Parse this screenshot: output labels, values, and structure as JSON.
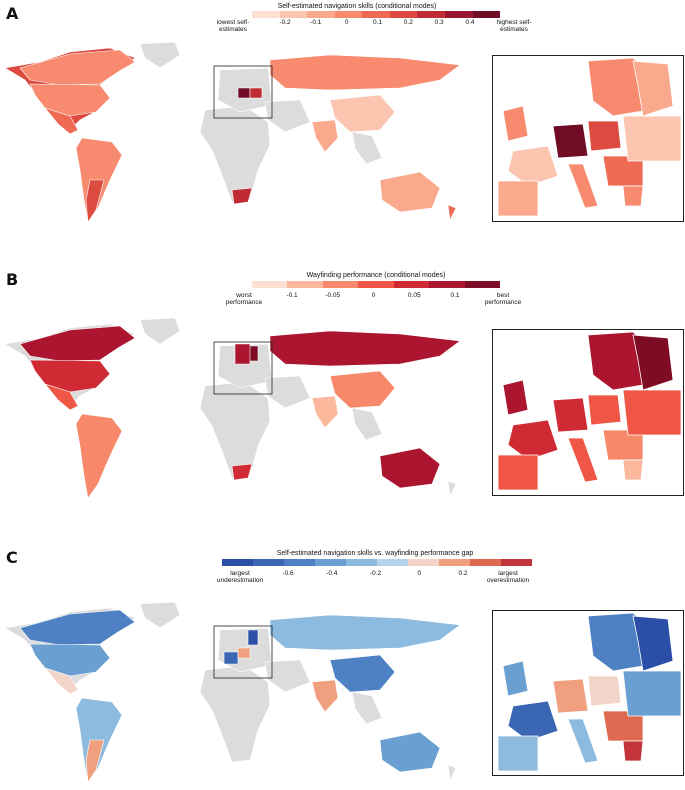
{
  "colors": {
    "no_data": "#dcdcdc",
    "border": "#ffffff",
    "frame": "#222222"
  },
  "chart_data": [
    {
      "type": "choropleth-map",
      "panel": "A",
      "title": "Self-estimated navigation skills (conditional modes)",
      "scale_low_label": "lowest self-estimates",
      "scale_high_label": "highest self-estimates",
      "ticks": [
        "-0.2",
        "-0.1",
        "0",
        "0.1",
        "0.2",
        "0.3",
        "0.4"
      ],
      "palette": [
        "#fde0d4",
        "#fcc5b0",
        "#fba98c",
        "#f88b6f",
        "#ef6a53",
        "#dd4a40",
        "#c02c33",
        "#9a1530",
        "#700c26"
      ],
      "regions": [
        {
          "name": "North America",
          "class": 5
        },
        {
          "name": "Canada",
          "class": 3
        },
        {
          "name": "USA",
          "class": 3
        },
        {
          "name": "Mexico",
          "class": 4
        },
        {
          "name": "South America",
          "class": 3
        },
        {
          "name": "Argentina",
          "class": 5
        },
        {
          "name": "Africa",
          "class": -1
        },
        {
          "name": "South Africa",
          "class": 6
        },
        {
          "name": "Russia",
          "class": 3
        },
        {
          "name": "China",
          "class": 1
        },
        {
          "name": "India",
          "class": 2
        },
        {
          "name": "Australia",
          "class": 2
        },
        {
          "name": "New Zealand",
          "class": 4
        },
        {
          "name": "Germany",
          "class": 8
        },
        {
          "name": "Poland",
          "class": 6
        }
      ]
    },
    {
      "type": "choropleth-map",
      "panel": "B",
      "title": "Wayfinding performance (conditional modes)",
      "scale_low_label": "worst performance",
      "scale_high_label": "best performance",
      "ticks": [
        "-0.1",
        "-0.05",
        "0",
        "0.05",
        "0.1"
      ],
      "palette": [
        "#fde0d4",
        "#fbb89c",
        "#f7896a",
        "#ef5645",
        "#d02a34",
        "#ab1530",
        "#7e0c25"
      ],
      "regions": [
        {
          "name": "Canada",
          "class": 5
        },
        {
          "name": "USA",
          "class": 4
        },
        {
          "name": "Mexico",
          "class": 3
        },
        {
          "name": "South America",
          "class": 2
        },
        {
          "name": "Russia",
          "class": 5
        },
        {
          "name": "China",
          "class": 2
        },
        {
          "name": "India",
          "class": 1
        },
        {
          "name": "Australia",
          "class": 5
        },
        {
          "name": "South Africa",
          "class": 4
        },
        {
          "name": "Finland",
          "class": 6
        },
        {
          "name": "Nordics",
          "class": 5
        }
      ]
    },
    {
      "type": "choropleth-map",
      "panel": "C",
      "title": "Self-estimated navigation skills vs. wayfinding performance gap",
      "scale_low_label": "largest underestimation",
      "scale_high_label": "largest overestimation",
      "ticks": [
        "-0.6",
        "-0.4",
        "-0.2",
        "0",
        "0.2"
      ],
      "palette": [
        "#2b4fa6",
        "#3b66b4",
        "#4d81c3",
        "#6a9fd2",
        "#8dbbe0",
        "#b3d4ec",
        "#f2d5c8",
        "#f0a07e",
        "#dd6a50",
        "#c2333a"
      ],
      "regions": [
        {
          "name": "Canada",
          "class": 2
        },
        {
          "name": "USA",
          "class": 3
        },
        {
          "name": "Mexico",
          "class": 6
        },
        {
          "name": "South America",
          "class": 4
        },
        {
          "name": "Argentina",
          "class": 7
        },
        {
          "name": "Russia",
          "class": 4
        },
        {
          "name": "China",
          "class": 2
        },
        {
          "name": "India",
          "class": 7
        },
        {
          "name": "Australia",
          "class": 3
        },
        {
          "name": "Finland",
          "class": 0
        },
        {
          "name": "France",
          "class": 1
        },
        {
          "name": "Germany",
          "class": 7
        }
      ]
    }
  ]
}
